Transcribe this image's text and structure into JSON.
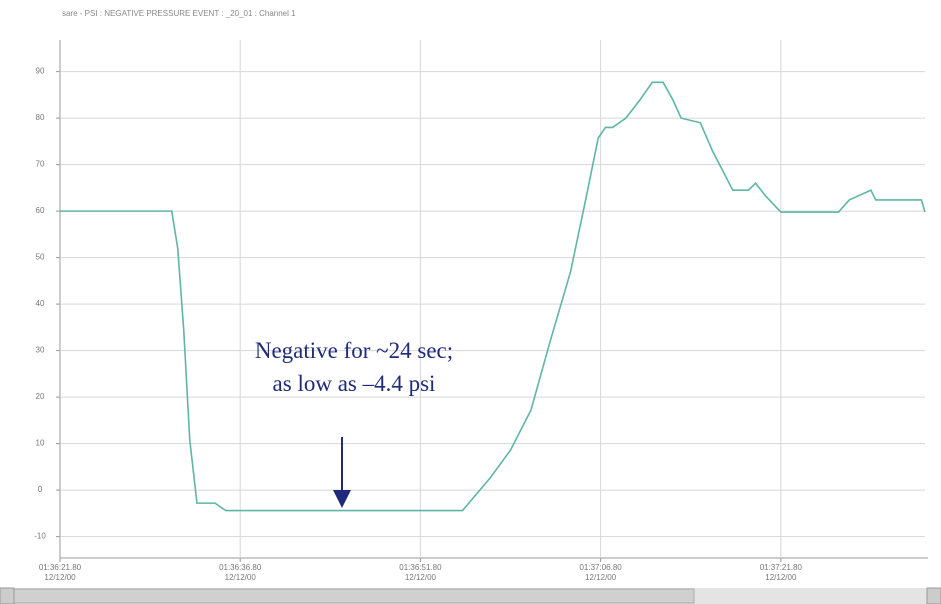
{
  "chart_data": {
    "type": "line",
    "title": "sare - PSI : NEGATIVE PRESSURE EVENT : _20_01 : Channel 1",
    "annotation": [
      "Negative for ~24 sec;",
      "as low as –4.4 psi"
    ],
    "xlim": [
      0,
      72
    ],
    "xticks": [
      {
        "value": 0,
        "label": "01:36:21.80\n12/12/00"
      },
      {
        "value": 15,
        "label": "01:36:36.80\n12/12/00"
      },
      {
        "value": 30,
        "label": "01:36:51.80\n12/12/00"
      },
      {
        "value": 45,
        "label": "01:37:06.80\n12/12/00"
      },
      {
        "value": 60,
        "label": "01:37:21.80\n12/12/00"
      }
    ],
    "ylim": [
      -14.6,
      96.8
    ],
    "yticks": [
      90,
      80,
      70,
      60,
      50,
      40,
      30,
      20,
      10,
      0,
      -10
    ],
    "grid": true,
    "series": [
      {
        "name": "Channel 1",
        "color": "#5fb5a6",
        "x": [
          0,
          9.3,
          9.8,
          10.3,
          10.8,
          11.4,
          12.9,
          13.8,
          33.5,
          35.8,
          37.5,
          39.2,
          40.8,
          42.5,
          43.75,
          44.8,
          45.4,
          46,
          47.1,
          48.3,
          49.3,
          50.2,
          51,
          51.7,
          53.3,
          54.3,
          56,
          57.3,
          57.9,
          58.75,
          60,
          64.8,
          65.7,
          67.5,
          67.9,
          71.7,
          72
        ],
        "values": [
          60,
          60,
          52,
          34.4,
          10.8,
          -2.8,
          -2.8,
          -4.4,
          -4.4,
          2.6,
          8.6,
          17.2,
          32,
          47,
          62.4,
          75.7,
          78,
          78,
          80,
          84,
          87.7,
          87.7,
          84,
          80,
          79,
          73,
          64.5,
          64.5,
          66,
          63.2,
          59.8,
          59.8,
          62.4,
          64.5,
          62.4,
          62.4,
          59.8
        ]
      }
    ]
  }
}
